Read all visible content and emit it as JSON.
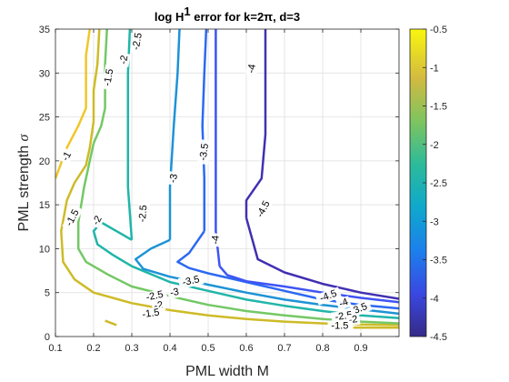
{
  "chart_data": {
    "type": "contour",
    "title": {
      "prefix": "log H",
      "superscript": "1",
      "suffix": " error for k=2π, d=3"
    },
    "xlabel": "PML width M",
    "ylabel": {
      "text": "PML strength ",
      "symbol": "σ"
    },
    "xlim": [
      0.1,
      1.0
    ],
    "ylim": [
      0,
      35
    ],
    "xticks": [
      0.1,
      0.2,
      0.3,
      0.4,
      0.5,
      0.6,
      0.7,
      0.8,
      0.9
    ],
    "xtick_labels": [
      "0.1",
      "0.2",
      "0.3",
      "0.4",
      "0.5",
      "0.6",
      "0.7",
      "0.8",
      "0.9"
    ],
    "yticks": [
      0,
      5,
      10,
      15,
      20,
      25,
      30,
      35
    ],
    "ytick_labels": [
      "0",
      "5",
      "10",
      "15",
      "20",
      "25",
      "30",
      "35"
    ],
    "grid": true,
    "colormap": "parula",
    "colorbar": {
      "ticks": [
        -0.5,
        -1,
        -1.5,
        -2,
        -2.5,
        -3,
        -3.5,
        -4,
        -4.5
      ],
      "tick_labels": [
        "-0.5",
        "-1",
        "-1.5",
        "-2",
        "-2.5",
        "-3",
        "-3.5",
        "-4",
        "-4.5"
      ],
      "range": [
        -4.5,
        -0.5
      ]
    },
    "contours": [
      {
        "level": -1,
        "color": "#F0C62A",
        "segments": [
          [
            [
              0.1,
              18.0
            ],
            [
              0.13,
              21.5
            ],
            [
              0.16,
              24.0
            ],
            [
              0.18,
              26.0
            ],
            [
              0.18,
              32.0
            ],
            [
              0.19,
              35.0
            ]
          ]
        ]
      },
      {
        "level": -1.5,
        "color": "#CEBB28",
        "segments": [
          [
            [
              0.23,
              1.8
            ],
            [
              0.26,
              1.3
            ]
          ],
          [
            [
              0.88,
              1.0
            ],
            [
              1.0,
              1.0
            ]
          ],
          [
            [
              0.2,
              24.5
            ],
            [
              0.19,
              21.5
            ],
            [
              0.18,
              19.5
            ],
            [
              0.15,
              17.5
            ],
            [
              0.13,
              15.5
            ],
            [
              0.115,
              12.0
            ],
            [
              0.12,
              8.5
            ],
            [
              0.15,
              6.5
            ],
            [
              0.2,
              5.0
            ],
            [
              0.3,
              3.8
            ],
            [
              0.4,
              3.0
            ],
            [
              0.5,
              2.4
            ],
            [
              0.6,
              2.0
            ],
            [
              0.7,
              1.7
            ],
            [
              0.85,
              1.4
            ],
            [
              1.0,
              1.3
            ]
          ],
          [
            [
              0.2,
              24.5
            ],
            [
              0.2,
              28.0
            ],
            [
              0.21,
              31.0
            ],
            [
              0.215,
              35.0
            ]
          ]
        ]
      },
      {
        "level": -2,
        "color": "#74C865",
        "segments": [
          [
            [
              0.2,
              22.0
            ],
            [
              0.175,
              17.0
            ],
            [
              0.16,
              13.0
            ],
            [
              0.16,
              10.0
            ],
            [
              0.18,
              8.5
            ],
            [
              0.24,
              7.0
            ],
            [
              0.3,
              5.7
            ],
            [
              0.4,
              4.6
            ],
            [
              0.5,
              3.6
            ],
            [
              0.6,
              2.9
            ],
            [
              0.7,
              2.4
            ],
            [
              0.8,
              2.0
            ],
            [
              0.9,
              1.7
            ],
            [
              1.0,
              1.5
            ]
          ],
          [
            [
              0.2,
              22.0
            ],
            [
              0.22,
              24.0
            ],
            [
              0.23,
              26.0
            ],
            [
              0.23,
              31.0
            ],
            [
              0.235,
              35.0
            ]
          ]
        ]
      },
      {
        "level": -2.5,
        "color": "#21B5A9",
        "segments": [
          [
            [
              0.3,
              11.0
            ],
            [
              0.22,
              13.0
            ],
            [
              0.2,
              12.0
            ],
            [
              0.21,
              10.5
            ],
            [
              0.25,
              9.3
            ],
            [
              0.3,
              8.0
            ],
            [
              0.4,
              6.2
            ],
            [
              0.5,
              5.2
            ],
            [
              0.6,
              4.2
            ],
            [
              0.7,
              3.5
            ],
            [
              0.8,
              2.9
            ],
            [
              0.9,
              2.4
            ],
            [
              1.0,
              2.1
            ]
          ],
          [
            [
              0.3,
              11.0
            ],
            [
              0.29,
              17.0
            ],
            [
              0.29,
              24.0
            ],
            [
              0.29,
              30.0
            ],
            [
              0.295,
              35.0
            ]
          ]
        ]
      },
      {
        "level": -3,
        "color": "#1D93D6",
        "segments": [
          [
            [
              0.4,
              11.0
            ],
            [
              0.35,
              10.0
            ],
            [
              0.31,
              8.8
            ],
            [
              0.33,
              7.7
            ],
            [
              0.4,
              6.8
            ],
            [
              0.5,
              5.9
            ],
            [
              0.6,
              5.0
            ],
            [
              0.7,
              4.2
            ],
            [
              0.8,
              3.6
            ],
            [
              0.9,
              3.1
            ],
            [
              1.0,
              2.6
            ]
          ],
          [
            [
              0.4,
              11.0
            ],
            [
              0.4,
              17.0
            ],
            [
              0.41,
              24.0
            ],
            [
              0.42,
              30.0
            ],
            [
              0.425,
              35.0
            ]
          ]
        ]
      },
      {
        "level": -3.5,
        "color": "#2C69F3",
        "segments": [
          [
            [
              0.49,
              12.0
            ],
            [
              0.45,
              9.5
            ],
            [
              0.42,
              8.5
            ],
            [
              0.45,
              7.8
            ],
            [
              0.5,
              7.2
            ],
            [
              0.6,
              6.2
            ],
            [
              0.7,
              5.2
            ],
            [
              0.8,
              4.2
            ],
            [
              0.9,
              3.6
            ],
            [
              1.0,
              3.2
            ]
          ],
          [
            [
              0.49,
              12.0
            ],
            [
              0.49,
              18.0
            ],
            [
              0.485,
              24.0
            ],
            [
              0.49,
              30.0
            ],
            [
              0.495,
              35.0
            ]
          ]
        ]
      },
      {
        "level": -4,
        "color": "#3E54F4",
        "segments": [
          [
            [
              0.53,
              8.0
            ],
            [
              0.55,
              7.0
            ],
            [
              0.6,
              6.3
            ],
            [
              0.7,
              5.7
            ],
            [
              0.8,
              5.0
            ],
            [
              0.9,
              4.4
            ],
            [
              1.0,
              3.9
            ]
          ],
          [
            [
              0.53,
              8.0
            ],
            [
              0.52,
              12.0
            ],
            [
              0.52,
              20.0
            ],
            [
              0.52,
              26.0
            ],
            [
              0.52,
              31.0
            ],
            [
              0.52,
              35.0
            ]
          ]
        ]
      },
      {
        "level": -4.5,
        "color": "#4030B2",
        "segments": [
          [
            [
              0.6,
              13.5
            ],
            [
              0.63,
              8.8
            ],
            [
              0.7,
              7.3
            ],
            [
              0.8,
              6.0
            ],
            [
              0.9,
              5.0
            ],
            [
              1.0,
              4.3
            ]
          ],
          [
            [
              0.6,
              13.5
            ],
            [
              0.6,
              15.5
            ],
            [
              0.64,
              18.0
            ],
            [
              0.65,
              23.0
            ],
            [
              0.65,
              35.0
            ]
          ]
        ]
      }
    ],
    "contour_labels": [
      {
        "text": "-1",
        "x": 0.13,
        "y": 20.5,
        "angle": -62
      },
      {
        "text": "-1.5",
        "x": 0.24,
        "y": 29.5,
        "angle": -80
      },
      {
        "text": "-2",
        "x": 0.28,
        "y": 31.5,
        "angle": -80
      },
      {
        "text": "-2.5",
        "x": 0.315,
        "y": 33.6,
        "angle": -80
      },
      {
        "text": "-1.5",
        "x": 0.145,
        "y": 13.5,
        "angle": -62
      },
      {
        "text": "-2",
        "x": 0.21,
        "y": 13.2,
        "angle": -62
      },
      {
        "text": "-2.5",
        "x": 0.33,
        "y": 14.0,
        "angle": -85
      },
      {
        "text": "-3",
        "x": 0.41,
        "y": 18.0,
        "angle": -80
      },
      {
        "text": "-3.5",
        "x": 0.49,
        "y": 21.0,
        "angle": -82
      },
      {
        "text": "-4",
        "x": 0.615,
        "y": 30.5,
        "angle": -80
      },
      {
        "text": "-4",
        "x": 0.52,
        "y": 11.0,
        "angle": -85
      },
      {
        "text": "-4.5",
        "x": 0.645,
        "y": 14.5,
        "angle": -62
      },
      {
        "text": "-3.5",
        "x": 0.455,
        "y": 6.3,
        "angle": -12
      },
      {
        "text": "-3",
        "x": 0.412,
        "y": 5.0,
        "angle": -10
      },
      {
        "text": "-2.5",
        "x": 0.36,
        "y": 4.6,
        "angle": -12
      },
      {
        "text": "-2",
        "x": 0.37,
        "y": 3.5,
        "angle": -10
      },
      {
        "text": "-1.5",
        "x": 0.35,
        "y": 2.6,
        "angle": -8
      },
      {
        "text": "-4.5",
        "x": 0.815,
        "y": 4.6,
        "angle": -20
      },
      {
        "text": "-4",
        "x": 0.855,
        "y": 3.8,
        "angle": -20
      },
      {
        "text": "-3.5",
        "x": 0.895,
        "y": 3.1,
        "angle": -22
      },
      {
        "text": "-2.5",
        "x": 0.855,
        "y": 2.3,
        "angle": -8
      },
      {
        "text": "-2",
        "x": 0.88,
        "y": 1.9,
        "angle": -8
      },
      {
        "text": "-1.5",
        "x": 0.845,
        "y": 1.2,
        "angle": 0
      }
    ]
  }
}
